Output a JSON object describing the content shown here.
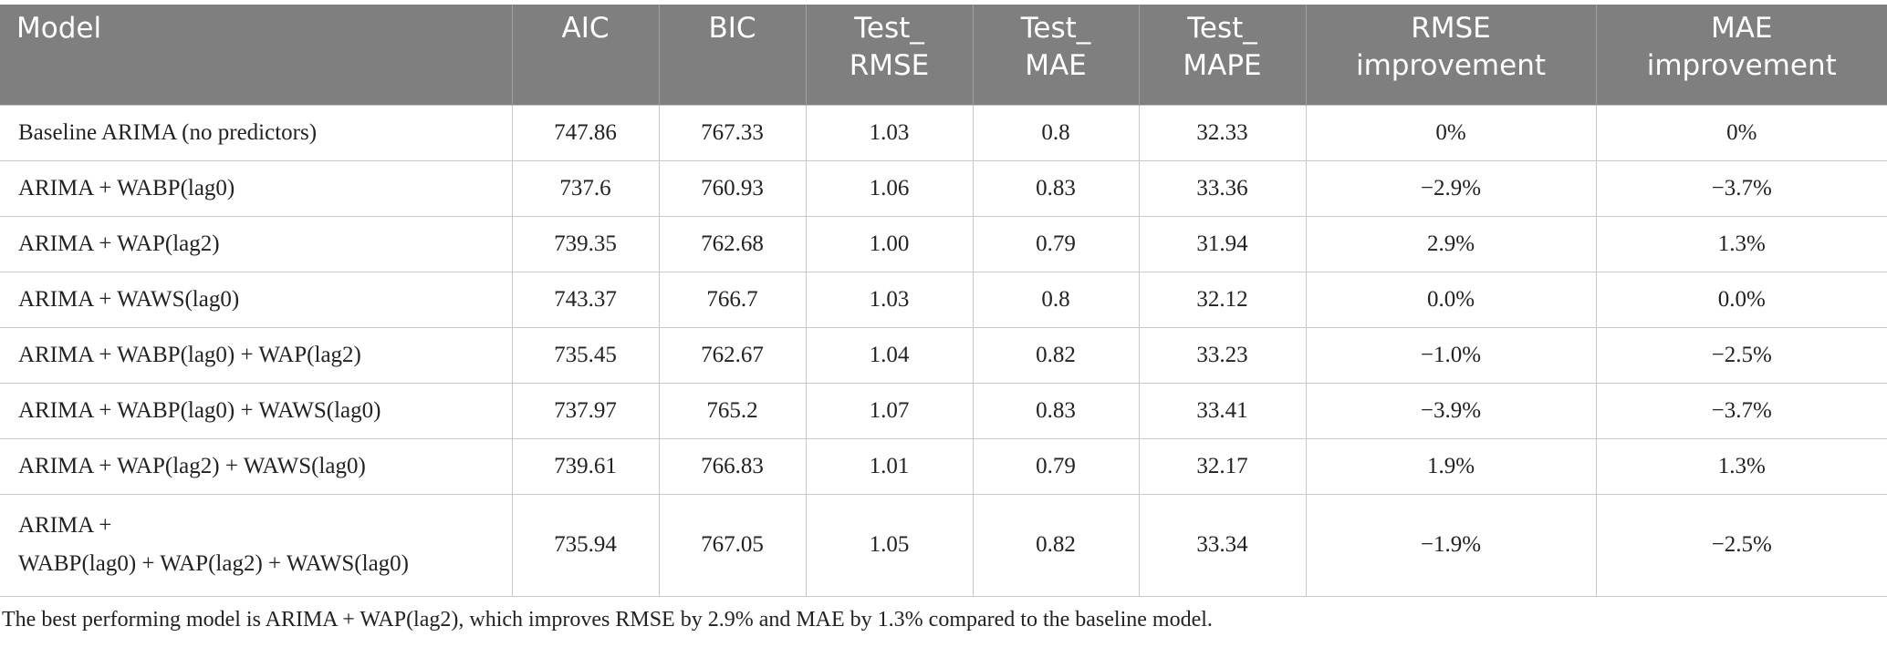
{
  "table": {
    "header": [
      "Model",
      "AIC",
      "BIC",
      "Test_\nRMSE",
      "Test_\nMAE",
      "Test_\nMAPE",
      "RMSE\nimprovement",
      "MAE\nimprovement"
    ],
    "rows": [
      [
        "Baseline ARIMA (no predictors)",
        "747.86",
        "767.33",
        "1.03",
        "0.8",
        "32.33",
        "0%",
        "0%"
      ],
      [
        "ARIMA + WABP(lag0)",
        "737.6",
        "760.93",
        "1.06",
        "0.83",
        "33.36",
        "−2.9%",
        "−3.7%"
      ],
      [
        "ARIMA + WAP(lag2)",
        "739.35",
        "762.68",
        "1.00",
        "0.79",
        "31.94",
        "2.9%",
        "1.3%"
      ],
      [
        "ARIMA + WAWS(lag0)",
        "743.37",
        "766.7",
        "1.03",
        "0.8",
        "32.12",
        "0.0%",
        "0.0%"
      ],
      [
        "ARIMA + WABP(lag0) + WAP(lag2)",
        "735.45",
        "762.67",
        "1.04",
        "0.82",
        "33.23",
        "−1.0%",
        "−2.5%"
      ],
      [
        "ARIMA + WABP(lag0) + WAWS(lag0)",
        "737.97",
        "765.2",
        "1.07",
        "0.83",
        "33.41",
        "−3.9%",
        "−3.7%"
      ],
      [
        "ARIMA + WAP(lag2) + WAWS(lag0)",
        "739.61",
        "766.83",
        "1.01",
        "0.79",
        "32.17",
        "1.9%",
        "1.3%"
      ],
      [
        "ARIMA +\nWABP(lag0) + WAP(lag2) + WAWS(lag0)",
        "735.94",
        "767.05",
        "1.05",
        "0.82",
        "33.34",
        "−1.9%",
        "−2.5%"
      ]
    ]
  },
  "footnote": "The best performing model is ARIMA + WAP(lag2), which improves RMSE by 2.9% and MAE by 1.3% compared to the baseline model."
}
